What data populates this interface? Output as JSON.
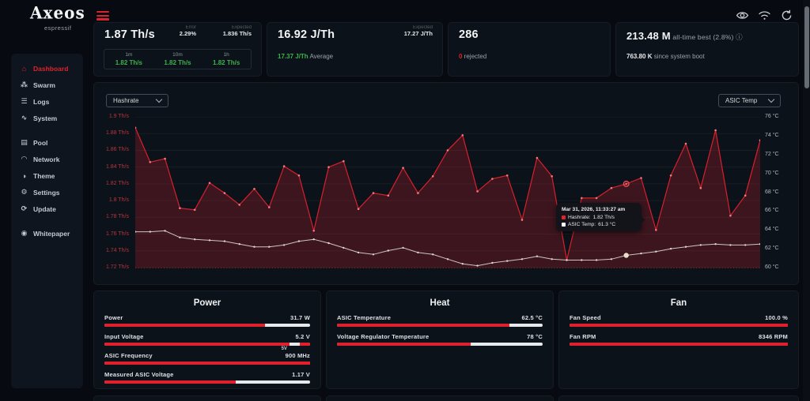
{
  "app": {
    "logo_title": "Axeos",
    "logo_subtitle": "espressif"
  },
  "topbar": {
    "icons": [
      "eye-icon",
      "wifi-icon",
      "refresh-icon"
    ]
  },
  "sidebar": {
    "items": [
      {
        "label": "Dashboard",
        "icon": "home",
        "glyph": "⌂",
        "active": true
      },
      {
        "label": "Swarm",
        "icon": "cluster",
        "glyph": "⁂"
      },
      {
        "label": "Logs",
        "icon": "list",
        "glyph": "☰"
      },
      {
        "label": "System",
        "icon": "activity",
        "glyph": "∿"
      },
      {
        "label": "Pool",
        "icon": "server",
        "glyph": "▤",
        "gap_before": true
      },
      {
        "label": "Network",
        "icon": "wifi",
        "glyph": "◠"
      },
      {
        "label": "Theme",
        "icon": "palette",
        "glyph": "◑"
      },
      {
        "label": "Settings",
        "icon": "gear",
        "glyph": "⚙"
      },
      {
        "label": "Update",
        "icon": "refresh",
        "glyph": "⟳"
      },
      {
        "label": "Whitepaper",
        "icon": "bitcoin-doc",
        "glyph": "◉",
        "gap_before": true
      }
    ]
  },
  "stats": {
    "hashrate": {
      "value": "1.87 Th/s",
      "error_label": "Error",
      "error_value": "2.29%",
      "expected_label": "Expected",
      "expected_value": "1.836 Th/s",
      "table": {
        "headers": [
          "1m",
          "10m",
          "1h"
        ],
        "values": [
          "1.82 Th/s",
          "1.82 Th/s",
          "1.82 Th/s"
        ]
      }
    },
    "efficiency": {
      "value": "16.92 J/Th",
      "expected_label": "Expected",
      "expected_value": "17.27 J/Th",
      "average_value": "17.37 J/Th",
      "average_suffix": " Average"
    },
    "shares": {
      "value": "286",
      "rejected_count": "0",
      "rejected_label": " rejected"
    },
    "best": {
      "value": "213.48 M",
      "suffix": " all-time best (2.8%) ",
      "info_icon": "ⓘ",
      "boot_value": "763.80 K",
      "boot_label": " since system boot"
    }
  },
  "chart": {
    "left_select": "Hashrate",
    "right_select": "ASIC Temp",
    "tooltip": {
      "date": "Mar 31, 2026, 11:33:27 am",
      "rows": [
        {
          "swatch": "#e0242e",
          "label": "Hashrate:",
          "value": "1.82 Th/s"
        },
        {
          "swatch": "#ffffff",
          "label": "ASIC Temp:",
          "value": "61.3 °C"
        }
      ]
    }
  },
  "chart_data": {
    "type": "line",
    "title": "",
    "legend_position": "tooltip-only",
    "grid": true,
    "hover_index": 33,
    "left_axis": {
      "label": "Hashrate",
      "unit": "Th/s",
      "min": 1.72,
      "max": 1.9,
      "ticks": [
        "1.9 Th/s",
        "1.88 Th/s",
        "1.86 Th/s",
        "1.84 Th/s",
        "1.82 Th/s",
        "1.8 Th/s",
        "1.78 Th/s",
        "1.76 Th/s",
        "1.74 Th/s",
        "1.72 Th/s"
      ]
    },
    "right_axis": {
      "label": "ASIC Temp",
      "unit": "°C",
      "min": 60,
      "max": 76,
      "ticks": [
        "76 °C",
        "74 °C",
        "72 °C",
        "70 °C",
        "68 °C",
        "66 °C",
        "64 °C",
        "62 °C",
        "60 °C"
      ]
    },
    "series": [
      {
        "name": "Hashrate",
        "axis": "left",
        "color": "#d7202c",
        "fill": "rgba(216,32,46,0.24)",
        "unit": "Th/s",
        "values": [
          1.887,
          1.846,
          1.85,
          1.791,
          1.789,
          1.821,
          1.809,
          1.795,
          1.814,
          1.792,
          1.841,
          1.83,
          1.764,
          1.84,
          1.847,
          1.79,
          1.809,
          1.806,
          1.839,
          1.809,
          1.829,
          1.86,
          1.878,
          1.811,
          1.826,
          1.83,
          1.777,
          1.851,
          1.829,
          1.729,
          1.803,
          1.803,
          1.815,
          1.82,
          1.827,
          1.765,
          1.83,
          1.868,
          1.815,
          1.884,
          1.782,
          1.806,
          1.872
        ]
      },
      {
        "name": "ASIC Temp",
        "axis": "right",
        "color": "#cdc5be",
        "unit": "°C",
        "values": [
          63.8,
          63.8,
          63.9,
          63.2,
          63.0,
          62.9,
          62.8,
          62.5,
          62.2,
          62.2,
          62.4,
          62.8,
          63.0,
          62.6,
          62.1,
          61.6,
          61.4,
          61.8,
          62.1,
          61.6,
          61.4,
          60.9,
          60.4,
          60.2,
          60.5,
          60.7,
          60.9,
          61.2,
          60.9,
          60.8,
          60.8,
          60.8,
          60.9,
          61.3,
          61.5,
          61.7,
          62.0,
          62.2,
          62.4,
          62.5,
          62.4,
          62.4,
          62.5
        ]
      }
    ]
  },
  "panels": {
    "power": {
      "title": "Power",
      "rows": [
        {
          "label": "Power",
          "value": "31.7 W",
          "pct": 78
        },
        {
          "label": "Input Voltage",
          "value": "5.2 V",
          "pct": 90,
          "tail_start": 95,
          "marker_text": "5V",
          "marker_pos": 86
        },
        {
          "label": "ASIC Frequency",
          "value": "900 MHz",
          "pct": 100
        },
        {
          "label": "Measured ASIC Voltage",
          "value": "1.17 V",
          "pct": 64
        }
      ]
    },
    "heat": {
      "title": "Heat",
      "rows": [
        {
          "label": "ASIC Temperature",
          "value": "62.5 °C",
          "pct": 84
        },
        {
          "label": "Voltage Regulator Temperature",
          "value": "78 °C",
          "pct": 65
        }
      ]
    },
    "fan": {
      "title": "Fan",
      "rows": [
        {
          "label": "Fan Speed",
          "value": "100.0 %",
          "pct": 100
        },
        {
          "label": "Fan RPM",
          "value": "8346 RPM",
          "pct": 100
        }
      ]
    }
  },
  "colors": {
    "accent": "#d9232e",
    "green": "#3eb14d",
    "card_bg": "#0c1219",
    "page_bg": "#070b11"
  }
}
